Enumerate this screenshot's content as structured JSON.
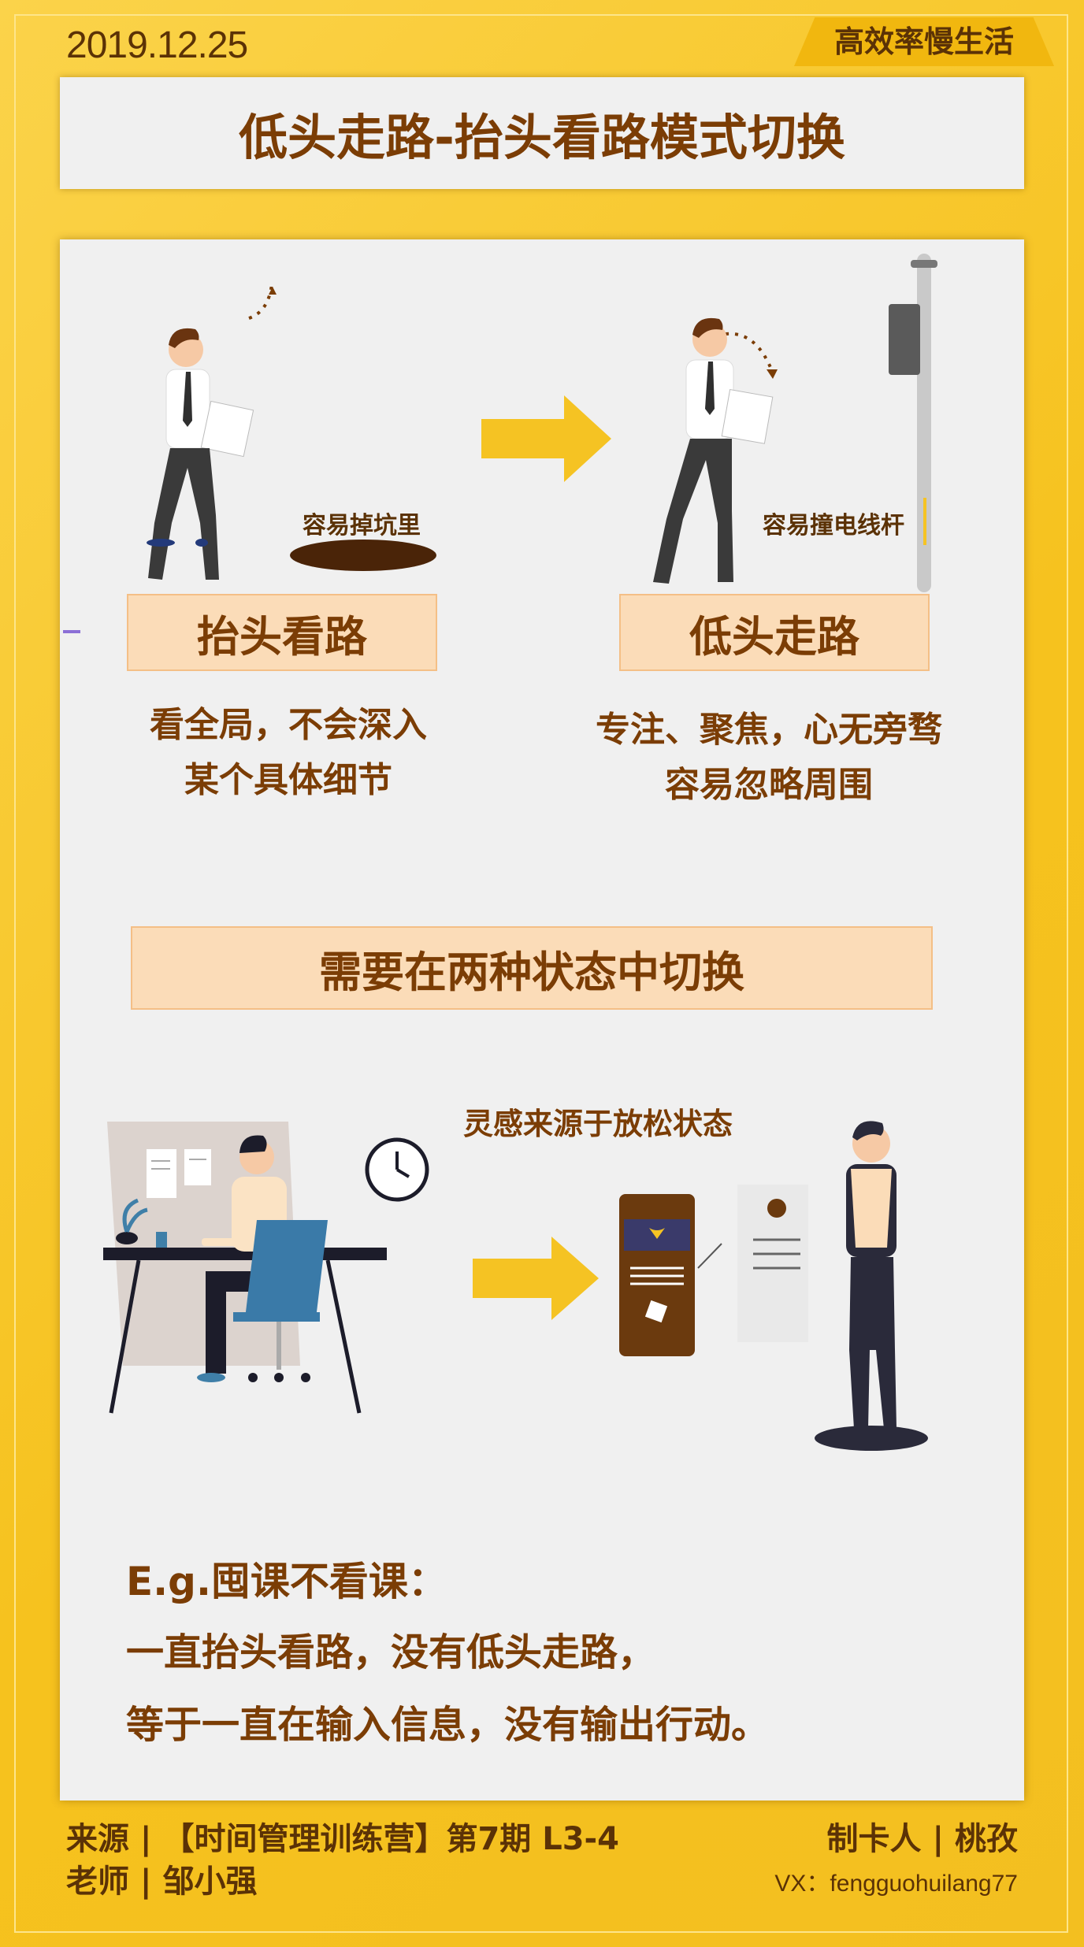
{
  "header": {
    "date": "2019.12.25",
    "tag": "高效率慢生活",
    "title": "低头走路-抬头看路模式切换"
  },
  "panel_left": {
    "caption": "容易掉坑里",
    "label": "抬头看路",
    "desc_line1": "看全局，不会深入",
    "desc_line2": "某个具体细节"
  },
  "panel_right": {
    "caption": "容易撞电线杆",
    "label": "低头走路",
    "desc_line1": "专注、聚焦，心无旁骛",
    "desc_line2": "容易忽略周围"
  },
  "switch_label": "需要在两种状态中切换",
  "inspiration_caption": "灵感来源于放松状态",
  "example": {
    "heading": "E.g.囤课不看课：",
    "line1": "一直抬头看路，没有低头走路，",
    "line2": "等于一直在输入信息，没有输出行动。"
  },
  "footer": {
    "source": "来源 | 【时间管理训练营】第7期  L3-4",
    "teacher": "老师 | 邹小强",
    "maker": "制卡人 | 桃孜",
    "vx": "VX：fengguohuilang77"
  },
  "colors": {
    "background": "#f6c21e",
    "panel": "#f0f0f0",
    "text_brown": "#7b3d05",
    "label_fill": "#fbdcb8",
    "arrow_yellow": "#f5c323"
  },
  "icons": [
    "walking-man-looking-up",
    "walking-man-looking-down",
    "pothole",
    "utility-pole",
    "right-arrow",
    "man-at-desk",
    "wall-clock",
    "phone-app",
    "standing-man"
  ]
}
